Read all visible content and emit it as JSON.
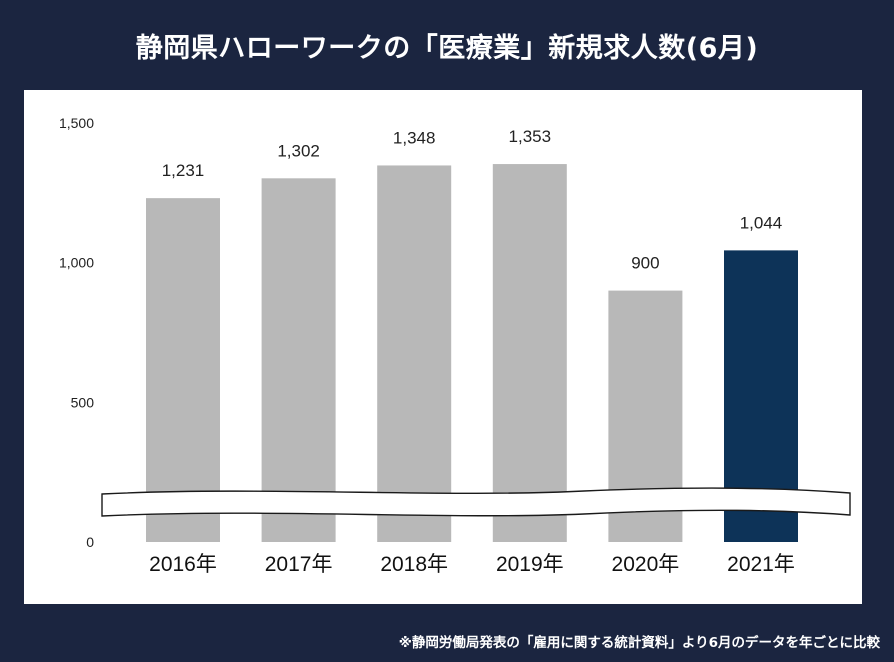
{
  "title": "静岡県ハローワークの「医療業」新規求人数(6月)",
  "footnote": "※静岡労働局発表の「雇用に関する統計資料」より6月のデータを年ごとに比較",
  "colors": {
    "background": "#1b2540",
    "bar_default": "#b8b8b8",
    "bar_highlight": "#0d3358"
  },
  "chart_data": {
    "type": "bar",
    "title": "静岡県ハローワークの「医療業」新規求人数(6月)",
    "categories": [
      "2016年",
      "2017年",
      "2018年",
      "2019年",
      "2020年",
      "2021年"
    ],
    "values": [
      1231,
      1302,
      1348,
      1353,
      900,
      1044
    ],
    "value_labels": [
      "1,231",
      "1,302",
      "1,348",
      "1,353",
      "900",
      "1,044"
    ],
    "highlight_index": 5,
    "y_ticks": [
      0,
      500,
      1000,
      1500
    ],
    "y_tick_labels": [
      "0",
      "500",
      "1,000",
      "1,500"
    ],
    "ylim": [
      0,
      1500
    ],
    "axis_break": true,
    "grid": false,
    "xlabel": "",
    "ylabel": ""
  }
}
